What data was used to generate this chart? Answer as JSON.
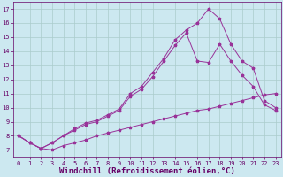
{
  "xlabel": "Windchill (Refroidissement éolien,°C)",
  "xlim": [
    -0.5,
    23.5
  ],
  "ylim": [
    6.5,
    17.5
  ],
  "xticks": [
    0,
    1,
    2,
    3,
    4,
    5,
    6,
    7,
    8,
    9,
    10,
    11,
    12,
    13,
    14,
    15,
    16,
    17,
    18,
    19,
    20,
    21,
    22,
    23
  ],
  "yticks": [
    7,
    8,
    9,
    10,
    11,
    12,
    13,
    14,
    15,
    16,
    17
  ],
  "background_color": "#cce8f0",
  "grid_color": "#aacccc",
  "line_color": "#993399",
  "line1_x": [
    0,
    1,
    2,
    3,
    4,
    5,
    6,
    7,
    8,
    9,
    10,
    11,
    12,
    13,
    14,
    15,
    16,
    17,
    18,
    19,
    20,
    21,
    22,
    23
  ],
  "line1_y": [
    8.0,
    7.5,
    7.1,
    7.0,
    7.3,
    7.5,
    7.7,
    8.0,
    8.2,
    8.4,
    8.6,
    8.8,
    9.0,
    9.2,
    9.4,
    9.6,
    9.8,
    9.9,
    10.1,
    10.3,
    10.5,
    10.7,
    10.9,
    11.0
  ],
  "line2_x": [
    0,
    1,
    2,
    3,
    4,
    5,
    6,
    7,
    8,
    9,
    10,
    11,
    12,
    13,
    14,
    15,
    16,
    17,
    18,
    19,
    20,
    21,
    22,
    23
  ],
  "line2_y": [
    8.0,
    7.5,
    7.1,
    7.5,
    8.0,
    8.4,
    8.8,
    9.0,
    9.4,
    9.8,
    10.8,
    11.3,
    12.2,
    13.3,
    14.4,
    15.3,
    13.3,
    13.2,
    14.5,
    13.3,
    12.3,
    11.5,
    10.2,
    9.8
  ],
  "line3_x": [
    0,
    1,
    2,
    3,
    4,
    5,
    6,
    7,
    8,
    9,
    10,
    11,
    12,
    13,
    14,
    15,
    16,
    17,
    18,
    19,
    20,
    21,
    22,
    23
  ],
  "line3_y": [
    8.0,
    7.5,
    7.1,
    7.5,
    8.0,
    8.5,
    8.9,
    9.1,
    9.5,
    9.9,
    11.0,
    11.5,
    12.5,
    13.5,
    14.8,
    15.5,
    16.0,
    17.0,
    16.3,
    14.5,
    13.3,
    12.8,
    10.5,
    10.0
  ],
  "font_color": "#660066",
  "tick_fontsize": 5,
  "label_fontsize": 6.5,
  "marker_size": 2.5,
  "line_width": 0.7
}
